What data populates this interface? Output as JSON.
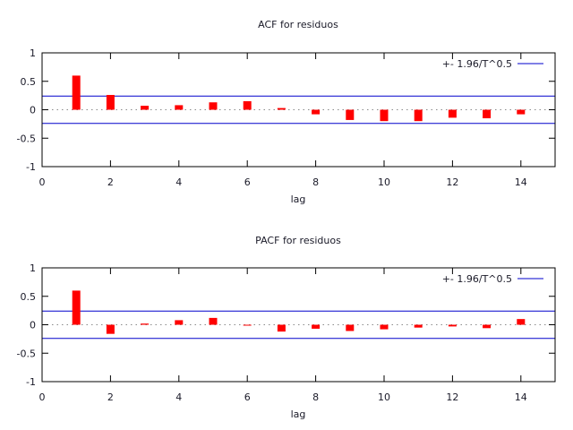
{
  "page": {
    "background": "#ffffff"
  },
  "chart_data": [
    {
      "type": "bar",
      "title": "ACF for residuos",
      "xlabel": "lag",
      "legend_label": "+- 1.96/T^0.5",
      "x": [
        1,
        2,
        3,
        4,
        5,
        6,
        7,
        8,
        9,
        10,
        11,
        12,
        13,
        14
      ],
      "values": [
        0.6,
        0.26,
        0.07,
        0.08,
        0.13,
        0.15,
        0.03,
        -0.08,
        -0.18,
        -0.2,
        -0.2,
        -0.14,
        -0.15,
        -0.08
      ],
      "confidence_band": 0.24,
      "xlim": [
        0,
        15
      ],
      "ylim": [
        -1,
        1
      ],
      "x_ticks": [
        0,
        2,
        4,
        6,
        8,
        10,
        12,
        14
      ],
      "y_ticks": [
        -1,
        -0.5,
        0,
        0.5,
        1
      ],
      "bar_color": "#ff0000",
      "band_color": "#0000cc",
      "zero_line_color": "#8a8a8a",
      "legend_position": "top-right",
      "grid": "off"
    },
    {
      "type": "bar",
      "title": "PACF for residuos",
      "xlabel": "lag",
      "legend_label": "+- 1.96/T^0.5",
      "x": [
        1,
        2,
        3,
        4,
        5,
        6,
        7,
        8,
        9,
        10,
        11,
        12,
        13,
        14
      ],
      "values": [
        0.6,
        -0.16,
        0.02,
        0.08,
        0.12,
        -0.01,
        -0.12,
        -0.07,
        -0.11,
        -0.08,
        -0.05,
        -0.03,
        -0.06,
        0.1
      ],
      "confidence_band": 0.24,
      "xlim": [
        0,
        15
      ],
      "ylim": [
        -1,
        1
      ],
      "x_ticks": [
        0,
        2,
        4,
        6,
        8,
        10,
        12,
        14
      ],
      "y_ticks": [
        -1,
        -0.5,
        0,
        0.5,
        1
      ],
      "bar_color": "#ff0000",
      "band_color": "#0000cc",
      "zero_line_color": "#8a8a8a",
      "legend_position": "top-right",
      "grid": "off"
    }
  ]
}
